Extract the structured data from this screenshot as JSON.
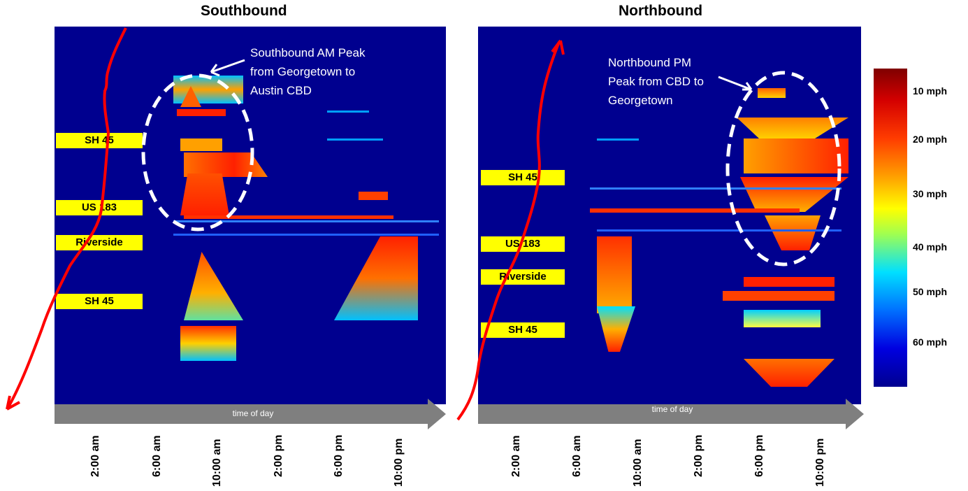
{
  "chart_data": [
    {
      "type": "heatmap",
      "title": "Southbound",
      "xlabel": "time of day",
      "x_tick_labels": [
        "2:00 am",
        "6:00 am",
        "10:00 am",
        "2:00 pm",
        "6:00 pm",
        "10:00 pm"
      ],
      "road_labels": [
        "SH 45",
        "US 183",
        "Riverside",
        "SH 45"
      ],
      "annotation": [
        "Southbound AM Peak",
        "from Georgetown to",
        "Austin CBD"
      ]
    },
    {
      "type": "heatmap",
      "title": "Northbound",
      "xlabel": "time of day",
      "x_tick_labels": [
        "2:00 am",
        "6:00 am",
        "10:00 am",
        "2:00 pm",
        "6:00 pm",
        "10:00 pm"
      ],
      "road_labels": [
        "SH 45",
        "US 183",
        "Riverside",
        "SH 45"
      ],
      "annotation": [
        "Northbound PM",
        "Peak from CBD to",
        "Georgetown"
      ]
    }
  ],
  "colorbar": {
    "labels": [
      "10 mph",
      "20 mph",
      "30 mph",
      "40 mph",
      "50 mph",
      "60 mph"
    ],
    "colors": [
      "#7f0000",
      "#ff2000",
      "#ffa000",
      "#ffff00",
      "#00e0ff",
      "#0000ff",
      "#00008f"
    ]
  },
  "background_color": "#00008f",
  "highlight_color": "#ff0000",
  "label_color": "#ffff00"
}
